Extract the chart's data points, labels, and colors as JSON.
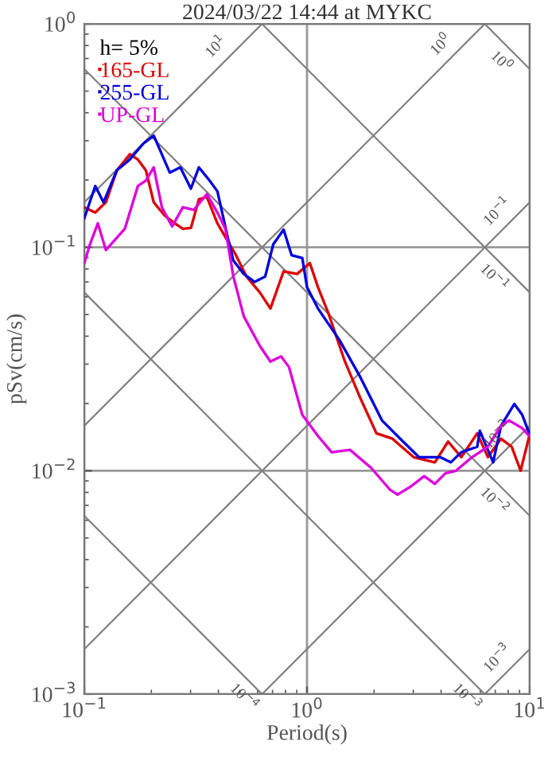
{
  "chart_data": {
    "type": "line",
    "title": "2024/03/22 14:44 at MYKC",
    "xlabel": "Period(s)",
    "ylabel": "pSv(cm/s)",
    "legend_title": "h= 5%",
    "legend": "top left",
    "log": "xy",
    "grid": true,
    "line_style": "solid",
    "marker": "none",
    "xlim": [
      0.1,
      10
    ],
    "ylim": [
      0.001,
      1
    ],
    "xticks": [
      {
        "value": 0.1,
        "label": "10$^{−1}$"
      },
      {
        "value": 1,
        "label": "10$^{0}$"
      },
      {
        "value": 10,
        "label": "10$^{1}$"
      }
    ],
    "yticks": [
      {
        "value": 0.001,
        "label": "10$^{−3}$"
      },
      {
        "value": 0.01,
        "label": "10$^{−2}$"
      },
      {
        "value": 0.1,
        "label": "10$^{−1}$"
      },
      {
        "value": 1,
        "label": "10$^{0}$"
      }
    ],
    "series": [
      {
        "type": "line",
        "color": "#808080",
        "x": [
          0.1,
          0.628
        ],
        "values": [
          0.159,
          1
        ]
      },
      {
        "type": "line",
        "color": "#808080",
        "x": [
          0.1,
          6.28
        ],
        "values": [
          0.0159,
          1
        ]
      },
      {
        "type": "line",
        "color": "#808080",
        "x": [
          0.1,
          10
        ],
        "values": [
          0.00159,
          0.159
        ]
      },
      {
        "type": "line",
        "color": "#808080",
        "x": [
          0.628,
          10
        ],
        "values": [
          0.001,
          0.0159
        ]
      },
      {
        "type": "line",
        "color": "#808080",
        "x": [
          6.28,
          10
        ],
        "values": [
          0.001,
          0.00159
        ]
      },
      {
        "type": "line",
        "color": "#808080",
        "x": [
          6.28,
          10
        ],
        "values": [
          1,
          0.628
        ]
      },
      {
        "type": "line",
        "color": "#808080",
        "x": [
          0.628,
          10
        ],
        "values": [
          1,
          0.0628
        ]
      },
      {
        "type": "line",
        "color": "#808080",
        "x": [
          0.1,
          10
        ],
        "values": [
          0.628,
          0.00628
        ]
      },
      {
        "type": "line",
        "color": "#808080",
        "x": [
          0.1,
          6.28
        ],
        "values": [
          0.0628,
          0.001
        ]
      },
      {
        "type": "line",
        "color": "#808080",
        "x": [
          0.1,
          0.628
        ],
        "values": [
          0.00628,
          0.001
        ]
      },
      {
        "name": "165-GL",
        "color": "#dd0000",
        "x": [
          0.1,
          0.112,
          0.125,
          0.14,
          0.16,
          0.174,
          0.189,
          0.205,
          0.229,
          0.255,
          0.277,
          0.301,
          0.327,
          0.355,
          0.396,
          0.442,
          0.48,
          0.535,
          0.614,
          0.685,
          0.785,
          0.902,
          1.03,
          1.12,
          1.25,
          1.48,
          1.74,
          2.05,
          2.42,
          3.01,
          3.75,
          4.3,
          4.93,
          5.81,
          6.49,
          7.43,
          8.3,
          9.1,
          9.95
        ],
        "values": [
          0.151,
          0.143,
          0.159,
          0.221,
          0.261,
          0.247,
          0.221,
          0.159,
          0.139,
          0.128,
          0.121,
          0.122,
          0.164,
          0.168,
          0.128,
          0.106,
          0.0921,
          0.074,
          0.0628,
          0.0532,
          0.0781,
          0.076,
          0.0849,
          0.0663,
          0.0504,
          0.0308,
          0.021,
          0.0147,
          0.0139,
          0.0115,
          0.0109,
          0.0135,
          0.0115,
          0.0147,
          0.0115,
          0.0139,
          0.0128,
          0.01,
          0.0143
        ]
      },
      {
        "name": "255-GL",
        "color": "#0000dd",
        "x": [
          0.1,
          0.112,
          0.122,
          0.14,
          0.16,
          0.184,
          0.205,
          0.242,
          0.27,
          0.301,
          0.327,
          0.365,
          0.396,
          0.442,
          0.467,
          0.52,
          0.581,
          0.649,
          0.705,
          0.785,
          0.853,
          0.952,
          1.0,
          1.12,
          1.4,
          1.74,
          2.17,
          2.7,
          3.18,
          3.96,
          4.42,
          4.93,
          5.81,
          5.97,
          6.85,
          7.43,
          8.53,
          9.25,
          9.95
        ],
        "values": [
          0.135,
          0.188,
          0.159,
          0.221,
          0.247,
          0.291,
          0.316,
          0.216,
          0.228,
          0.183,
          0.228,
          0.199,
          0.178,
          0.109,
          0.0873,
          0.076,
          0.07,
          0.074,
          0.103,
          0.12,
          0.0921,
          0.0896,
          0.0663,
          0.0532,
          0.0384,
          0.0261,
          0.0168,
          0.0135,
          0.0115,
          0.0115,
          0.0109,
          0.0121,
          0.0128,
          0.0151,
          0.0109,
          0.0159,
          0.0199,
          0.0178,
          0.0147
        ]
      },
      {
        "name": "UP-GL",
        "color": "#dd00dd",
        "x": [
          0.1,
          0.106,
          0.115,
          0.125,
          0.152,
          0.174,
          0.189,
          0.205,
          0.223,
          0.248,
          0.277,
          0.31,
          0.355,
          0.396,
          0.43,
          0.467,
          0.52,
          0.614,
          0.685,
          0.765,
          0.83,
          0.952,
          1.12,
          1.29,
          1.56,
          1.94,
          2.35,
          2.55,
          2.92,
          3.36,
          3.75,
          4.18,
          4.67,
          5.51,
          6.49,
          7.43,
          8.07,
          9.25,
          9.95
        ],
        "values": [
          0.0849,
          0.103,
          0.128,
          0.0972,
          0.121,
          0.188,
          0.199,
          0.228,
          0.151,
          0.124,
          0.151,
          0.147,
          0.173,
          0.143,
          0.121,
          0.074,
          0.0491,
          0.0362,
          0.0308,
          0.0325,
          0.0291,
          0.0178,
          0.0143,
          0.0121,
          0.0124,
          0.0103,
          0.00825,
          0.00782,
          0.00849,
          0.00946,
          0.00873,
          0.00973,
          0.01,
          0.0115,
          0.0128,
          0.0159,
          0.0168,
          0.0155,
          0.0143
        ]
      }
    ],
    "annotations": [
      {
        "text": "10$^{1}$",
        "x": 0.44,
        "y": 0.7
      },
      {
        "text": "10$^{0}$",
        "x": 4.5,
        "y": 0.716
      },
      {
        "text": "10$^{0}$",
        "x": 8.3,
        "y": 0.757
      },
      {
        "text": "10$^{−1}$",
        "x": 8.07,
        "y": 0.128
      },
      {
        "text": "10$^{−1}$",
        "x": 7.7,
        "y": 0.0816
      },
      {
        "text": "10$^{−2}$",
        "x": 8.07,
        "y": 0.0128
      },
      {
        "text": "10$^{−2}$",
        "x": 7.7,
        "y": 0.00816
      },
      {
        "text": "10$^{−3}$",
        "x": 5.8,
        "y": 0.00108
      },
      {
        "text": "10$^{−3}$",
        "x": 8.07,
        "y": 0.00128
      },
      {
        "text": "10$^{−4}$",
        "x": 0.58,
        "y": 0.00108
      }
    ]
  }
}
